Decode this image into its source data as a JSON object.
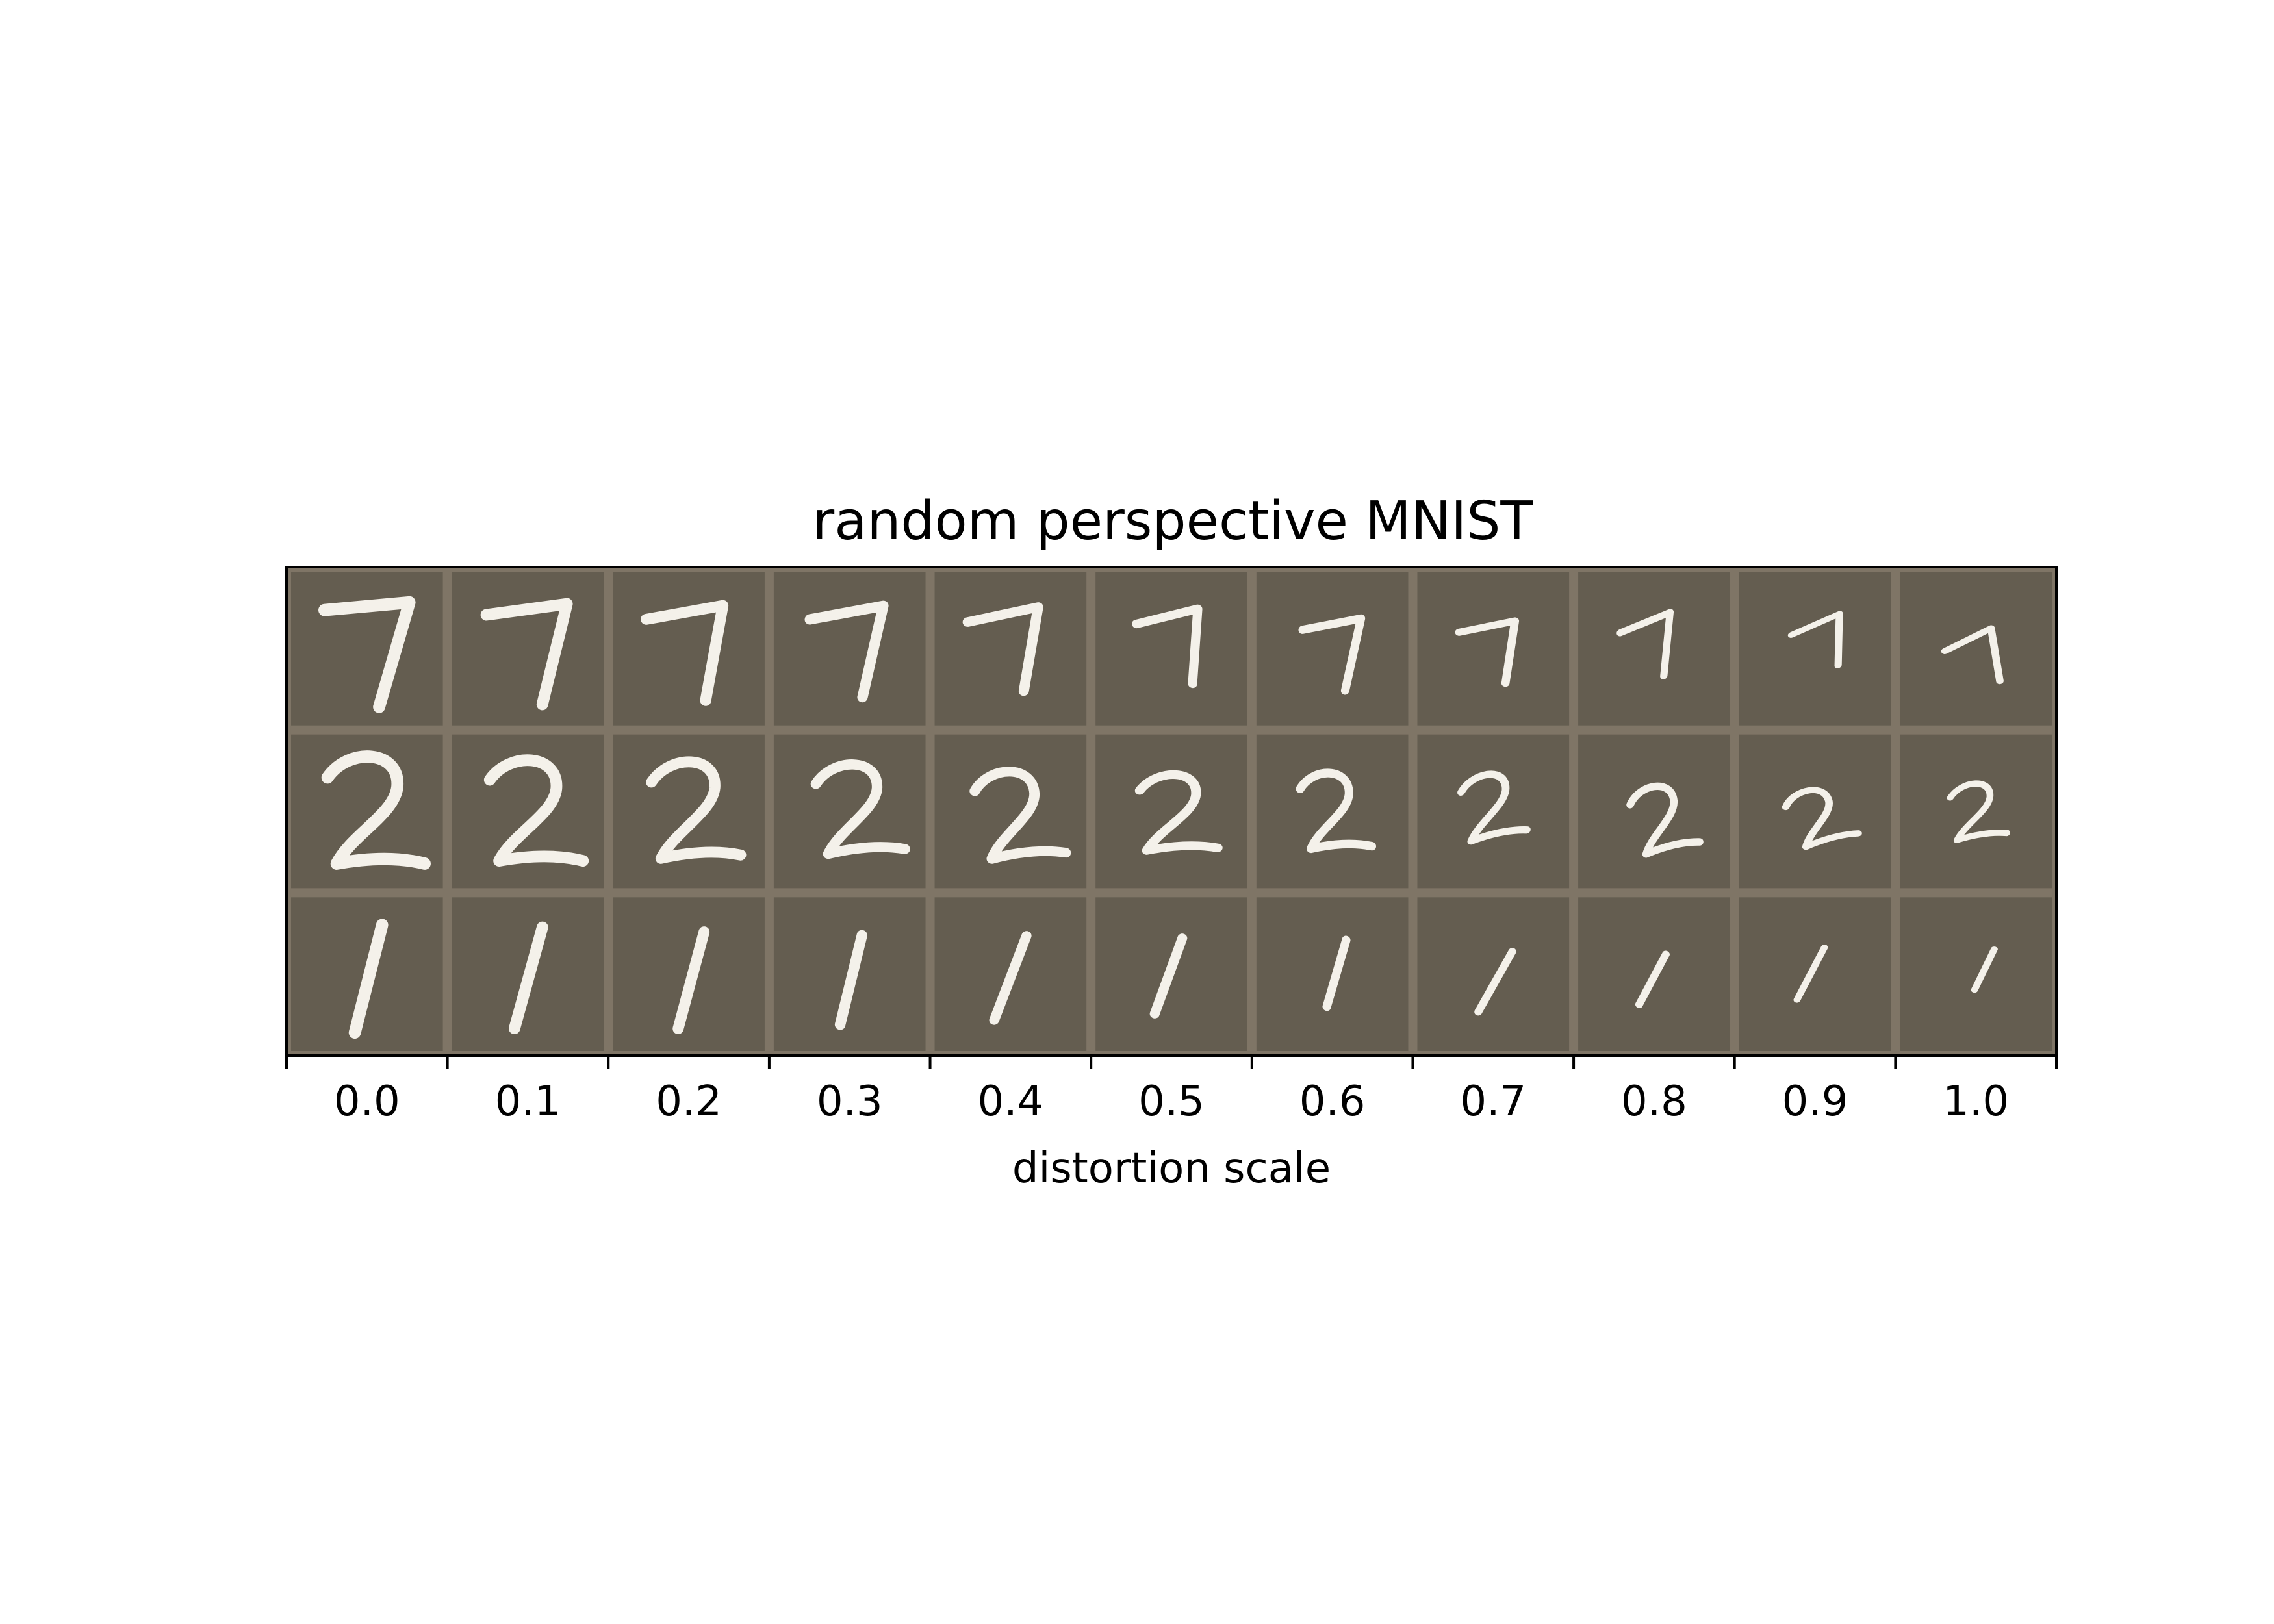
{
  "chart_data": {
    "type": "image-grid",
    "title": "random perspective MNIST",
    "xlabel": "distortion scale",
    "ylabel": "",
    "x_ticks": [
      "0.0",
      "0.1",
      "0.2",
      "0.3",
      "0.4",
      "0.5",
      "0.6",
      "0.7",
      "0.8",
      "0.9",
      "1.0"
    ],
    "distortion_scale": [
      0.0,
      0.1,
      0.2,
      0.3,
      0.4,
      0.5,
      0.6,
      0.7,
      0.8,
      0.9,
      1.0
    ],
    "rows": [
      {
        "digit": "7",
        "label": "seven"
      },
      {
        "digit": "2",
        "label": "two"
      },
      {
        "digit": "1",
        "label": "one"
      }
    ],
    "colors": {
      "cell_background": "#645d50",
      "grid_border": "#7f7566",
      "stroke": "#f4f1ea",
      "axes": "#000000"
    }
  }
}
